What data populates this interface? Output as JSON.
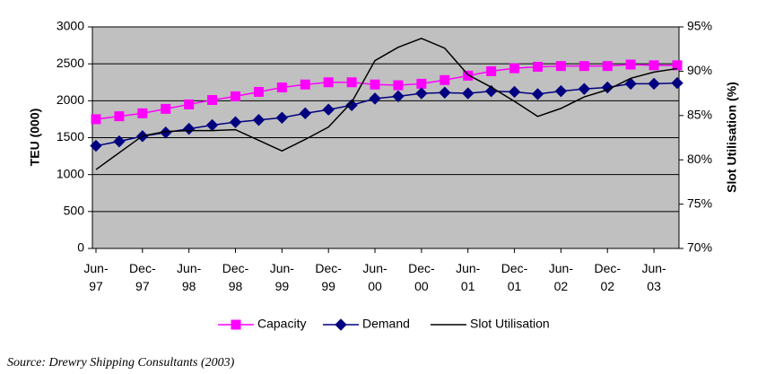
{
  "chart_data": {
    "type": "line",
    "categories": [
      "Jun-97",
      null,
      "Dec-97",
      null,
      "Jun-98",
      null,
      "Dec-98",
      null,
      "Jun-99",
      null,
      "Dec-99",
      null,
      "Jun-00",
      null,
      "Dec-00",
      null,
      "Jun-01",
      null,
      "Dec-01",
      null,
      "Jun-02",
      null,
      "Dec-02",
      null,
      "Jun-03",
      null
    ],
    "series": [
      {
        "name": "Capacity",
        "color": "#ff00ff",
        "marker": "square",
        "values": [
          1750,
          1790,
          1830,
          1890,
          1950,
          2010,
          2060,
          2120,
          2180,
          2220,
          2250,
          2250,
          2220,
          2210,
          2230,
          2280,
          2340,
          2400,
          2440,
          2460,
          2470,
          2470,
          2470,
          2490,
          2480,
          2480
        ]
      },
      {
        "name": "Demand",
        "color": "#000080",
        "marker": "diamond",
        "values": [
          1390,
          1450,
          1520,
          1570,
          1620,
          1670,
          1710,
          1740,
          1770,
          1830,
          1880,
          1940,
          2030,
          2060,
          2100,
          2110,
          2100,
          2130,
          2120,
          2090,
          2130,
          2160,
          2180,
          2230,
          2230,
          2240
        ]
      },
      {
        "name": "Slot Utilisation",
        "color": "#000000",
        "axis": "y2",
        "values": [
          78.9,
          80.8,
          82.7,
          83.2,
          83.3,
          83.3,
          83.4,
          82.2,
          81.0,
          82.3,
          83.7,
          86.5,
          91.2,
          92.7,
          93.7,
          92.6,
          89.6,
          88.2,
          86.6,
          84.9,
          85.8,
          87.1,
          87.9,
          89.2,
          89.9,
          90.3
        ]
      }
    ],
    "ylabel": "TEU (000)",
    "y2label": "Slot Utilisation (%)",
    "ylim": [
      0,
      3000
    ],
    "yticks": [
      0,
      500,
      1000,
      1500,
      2000,
      2500,
      3000
    ],
    "y2lim": [
      70,
      95
    ],
    "y2ticks": [
      {
        "value": 70,
        "label": "70%"
      },
      {
        "value": 75,
        "label": "75%"
      },
      {
        "value": 80,
        "label": "80%"
      },
      {
        "value": 85,
        "label": "85%"
      },
      {
        "value": 90,
        "label": "90%"
      },
      {
        "value": 95,
        "label": "95%"
      }
    ],
    "grid": true,
    "legend": "bottom",
    "source": "Source: Drewry Shipping Consultants (2003)"
  }
}
